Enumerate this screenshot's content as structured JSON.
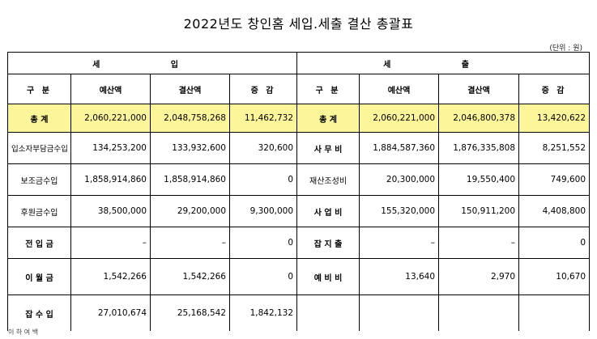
{
  "title": "2022년도 창인홈 세입.세출 결산 총괄표",
  "unit_note": "(단위 : 원)",
  "revenue_group": "세 입",
  "expense_group": "세 출",
  "headers": {
    "category": "구 분",
    "budget": "예산액",
    "settlement": "결산액",
    "change": "증 감"
  },
  "revenue_rows": [
    {
      "label": "총 계",
      "budget": "2,060,221,000",
      "settlement": "2,048,758,268",
      "change": "11,462,732"
    },
    {
      "label": "입소자부담금수입",
      "budget": "134,253,200",
      "settlement": "133,932,600",
      "change": "320,600"
    },
    {
      "label": "보조금수입",
      "budget": "1,858,914,860",
      "settlement": "1,858,914,860",
      "change": "0"
    },
    {
      "label": "후원금수입",
      "budget": "38,500,000",
      "settlement": "29,200,000",
      "change": "9,300,000"
    },
    {
      "label": "전 입 금",
      "budget": "–",
      "settlement": "–",
      "change": "0"
    },
    {
      "label": "이 월 금",
      "budget": "1,542,266",
      "settlement": "1,542,266",
      "change": "0"
    },
    {
      "label": "잡 수 입",
      "budget": "27,010,674",
      "settlement": "25,168,542",
      "change": "1,842,132"
    }
  ],
  "expense_rows": [
    {
      "label": "총 계",
      "budget": "2,060,221,000",
      "settlement": "2,046,800,378",
      "change": "13,420,622"
    },
    {
      "label": "사 무 비",
      "budget": "1,884,587,360",
      "settlement": "1,876,335,808",
      "change": "8,251,552"
    },
    {
      "label": "재산조성비",
      "budget": "20,300,000",
      "settlement": "19,550,400",
      "change": "749,600"
    },
    {
      "label": "사 업 비",
      "budget": "155,320,000",
      "settlement": "150,911,200",
      "change": "4,408,800"
    },
    {
      "label": "잡 지 출",
      "budget": "–",
      "settlement": "–",
      "change": "0"
    },
    {
      "label": "예 비 비",
      "budget": "13,640",
      "settlement": "2,970",
      "change": "10,670"
    },
    {
      "label": "",
      "budget": "",
      "settlement": "",
      "change": ""
    }
  ],
  "footer_note": "이 하 여 백"
}
